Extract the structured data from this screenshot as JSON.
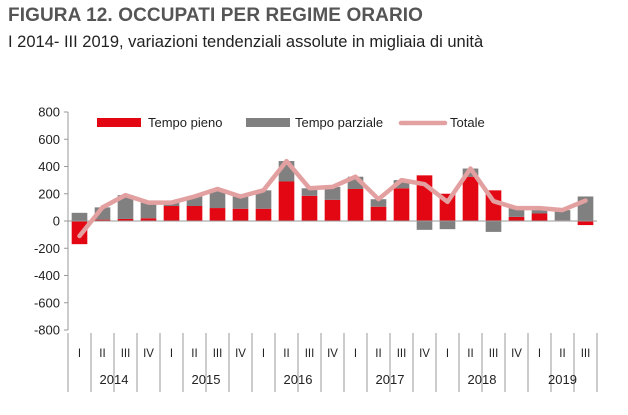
{
  "title": "FIGURA 12. OCCUPATI PER REGIME ORARIO",
  "subtitle": "I 2014- III 2019, variazioni tendenziali assolute in migliaia di unità",
  "colors": {
    "full_time": "#e30613",
    "part_time": "#808080",
    "total": "#e3a0a0",
    "axis": "#999999"
  },
  "chart_data": {
    "type": "bar",
    "stacked": true,
    "title": "FIGURA 12. OCCUPATI PER REGIME ORARIO",
    "subtitle": "I 2014- III 2019, variazioni tendenziali assolute in migliaia di unità",
    "ylim": [
      -800,
      800
    ],
    "yticks": [
      -800,
      -600,
      -400,
      -200,
      0,
      200,
      400,
      600,
      800
    ],
    "grid": false,
    "legend": "top",
    "categories": [
      "I",
      "II",
      "III",
      "IV",
      "I",
      "II",
      "III",
      "IV",
      "I",
      "II",
      "III",
      "IV",
      "I",
      "II",
      "III",
      "IV",
      "I",
      "II",
      "III",
      "IV",
      "I",
      "II",
      "III"
    ],
    "years": [
      {
        "label": "2014",
        "quarters": 4
      },
      {
        "label": "2015",
        "quarters": 4
      },
      {
        "label": "2016",
        "quarters": 4
      },
      {
        "label": "2017",
        "quarters": 4
      },
      {
        "label": "2018",
        "quarters": 4
      },
      {
        "label": "2019",
        "quarters": 3
      }
    ],
    "series": [
      {
        "name": "Tempo pieno",
        "type": "bar",
        "values": [
          -170,
          10,
          15,
          20,
          110,
          110,
          95,
          90,
          90,
          290,
          185,
          155,
          235,
          105,
          240,
          335,
          200,
          325,
          225,
          30,
          55,
          5,
          -30
        ]
      },
      {
        "name": "Tempo parziale",
        "type": "bar",
        "values": [
          60,
          90,
          175,
          115,
          25,
          70,
          140,
          90,
          135,
          150,
          55,
          95,
          90,
          55,
          60,
          -65,
          -60,
          60,
          -80,
          65,
          40,
          75,
          180
        ]
      },
      {
        "name": "Totale",
        "type": "line",
        "values": [
          -110,
          100,
          190,
          135,
          135,
          180,
          235,
          180,
          225,
          440,
          240,
          250,
          325,
          160,
          300,
          270,
          140,
          385,
          145,
          95,
          95,
          80,
          150
        ]
      }
    ]
  }
}
